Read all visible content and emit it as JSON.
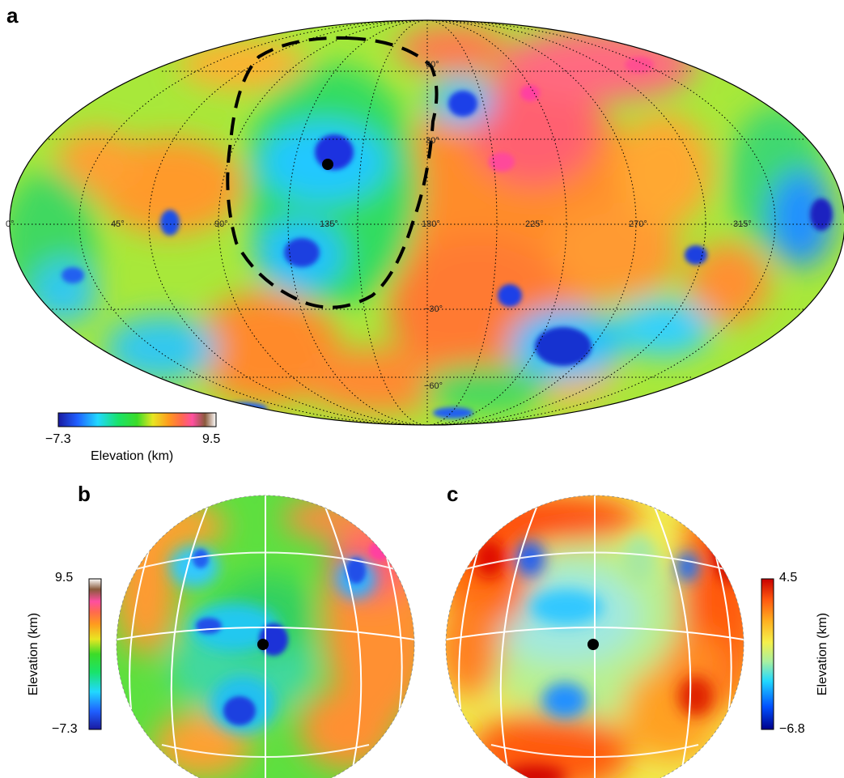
{
  "panels": {
    "a": {
      "letter": "a",
      "grid_labels": {
        "lon": [
          "0°",
          "45°",
          "90°",
          "135°",
          "180°",
          "225°",
          "270°",
          "315°"
        ],
        "lat": [
          "60°",
          "30°",
          "−30°",
          "−60°"
        ]
      },
      "colorbar": {
        "min": "−7.3",
        "max": "9.5",
        "title": "Elevation (km)",
        "colors": [
          "#1a1aa0",
          "#1f5fff",
          "#21d8ff",
          "#19e36a",
          "#3cdc28",
          "#e8e622",
          "#ff9a1e",
          "#ff6a4e",
          "#ff4fa0",
          "#8a5a3c",
          "#ffffff"
        ]
      }
    },
    "b": {
      "letter": "b",
      "colorbar": {
        "min": "−7.3",
        "max": "9.5",
        "title": "Elevation (km)",
        "colors": [
          "#1a1aa0",
          "#1f5fff",
          "#21d8ff",
          "#19e36a",
          "#3cdc28",
          "#e8e622",
          "#ff9a1e",
          "#ff6a4e",
          "#ff4fa0",
          "#8a5a3c",
          "#ffffff"
        ]
      }
    },
    "c": {
      "letter": "c",
      "colorbar": {
        "min": "−6.8",
        "max": "4.5",
        "title": "Elevation (km)",
        "colors": [
          "#00008b",
          "#0050ff",
          "#21d8ff",
          "#a8f0a0",
          "#f5f04a",
          "#ffb020",
          "#ff5a10",
          "#c80000"
        ]
      }
    }
  }
}
